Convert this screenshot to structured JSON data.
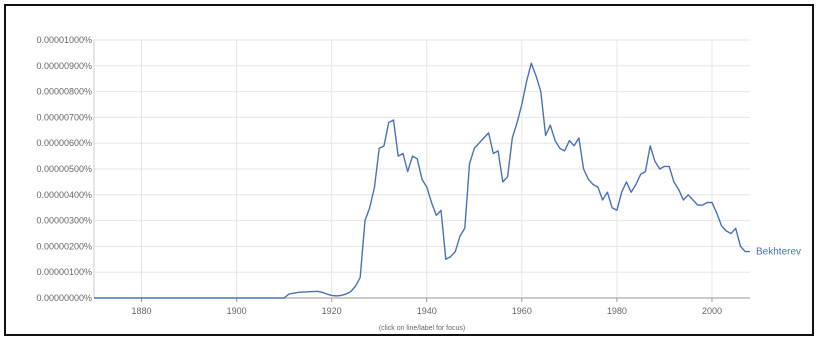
{
  "chart_data": {
    "type": "line",
    "title": "",
    "xlabel": "",
    "ylabel": "",
    "xlim": [
      1870,
      2008
    ],
    "ylim": [
      0,
      1e-05
    ],
    "x_ticks": [
      1880,
      1900,
      1920,
      1940,
      1960,
      1980,
      2000
    ],
    "y_ticks": [
      {
        "value": 1e-05,
        "label": "0.00001000%"
      },
      {
        "value": 9e-06,
        "label": "0.00000900%"
      },
      {
        "value": 8e-06,
        "label": "0.00000800%"
      },
      {
        "value": 7e-06,
        "label": "0.00000700%"
      },
      {
        "value": 6e-06,
        "label": "0.00000600%"
      },
      {
        "value": 5e-06,
        "label": "0.00000500%"
      },
      {
        "value": 4e-06,
        "label": "0.00000400%"
      },
      {
        "value": 3e-06,
        "label": "0.00000300%"
      },
      {
        "value": 2e-06,
        "label": "0.00000200%"
      },
      {
        "value": 1e-06,
        "label": "0.00000100%"
      },
      {
        "value": 0,
        "label": "0.00000000%"
      }
    ],
    "grid": true,
    "series": [
      {
        "name": "Bekhterev",
        "color": "#4a72b5",
        "points": [
          [
            1870,
            0
          ],
          [
            1910,
            0
          ],
          [
            1911,
            1.5e-07
          ],
          [
            1913,
            2.2e-07
          ],
          [
            1915,
            2.4e-07
          ],
          [
            1917,
            2.6e-07
          ],
          [
            1918,
            2.2e-07
          ],
          [
            1919,
            1.5e-07
          ],
          [
            1920,
            1e-07
          ],
          [
            1921,
            8e-08
          ],
          [
            1922,
            1e-07
          ],
          [
            1923,
            1.5e-07
          ],
          [
            1924,
            2.5e-07
          ],
          [
            1925,
            4.5e-07
          ],
          [
            1926,
            8e-07
          ],
          [
            1927,
            3e-06
          ],
          [
            1928,
            3.5e-06
          ],
          [
            1929,
            4.3e-06
          ],
          [
            1930,
            5.8e-06
          ],
          [
            1931,
            5.9e-06
          ],
          [
            1932,
            6.8e-06
          ],
          [
            1933,
            6.9e-06
          ],
          [
            1934,
            5.5e-06
          ],
          [
            1935,
            5.6e-06
          ],
          [
            1936,
            4.9e-06
          ],
          [
            1937,
            5.5e-06
          ],
          [
            1938,
            5.4e-06
          ],
          [
            1939,
            4.6e-06
          ],
          [
            1940,
            4.3e-06
          ],
          [
            1941,
            3.7e-06
          ],
          [
            1942,
            3.2e-06
          ],
          [
            1943,
            3.4e-06
          ],
          [
            1944,
            1.5e-06
          ],
          [
            1945,
            1.6e-06
          ],
          [
            1946,
            1.8e-06
          ],
          [
            1947,
            2.4e-06
          ],
          [
            1948,
            2.7e-06
          ],
          [
            1949,
            5.2e-06
          ],
          [
            1950,
            5.8e-06
          ],
          [
            1951,
            6e-06
          ],
          [
            1952,
            6.2e-06
          ],
          [
            1953,
            6.4e-06
          ],
          [
            1954,
            5.6e-06
          ],
          [
            1955,
            5.7e-06
          ],
          [
            1956,
            4.5e-06
          ],
          [
            1957,
            4.7e-06
          ],
          [
            1958,
            6.2e-06
          ],
          [
            1959,
            6.8e-06
          ],
          [
            1960,
            7.5e-06
          ],
          [
            1961,
            8.4e-06
          ],
          [
            1962,
            9.1e-06
          ],
          [
            1963,
            8.6e-06
          ],
          [
            1964,
            8e-06
          ],
          [
            1965,
            6.3e-06
          ],
          [
            1966,
            6.7e-06
          ],
          [
            1967,
            6.1e-06
          ],
          [
            1968,
            5.8e-06
          ],
          [
            1969,
            5.7e-06
          ],
          [
            1970,
            6.1e-06
          ],
          [
            1971,
            5.9e-06
          ],
          [
            1972,
            6.2e-06
          ],
          [
            1973,
            5e-06
          ],
          [
            1974,
            4.6e-06
          ],
          [
            1975,
            4.4e-06
          ],
          [
            1976,
            4.3e-06
          ],
          [
            1977,
            3.8e-06
          ],
          [
            1978,
            4.1e-06
          ],
          [
            1979,
            3.5e-06
          ],
          [
            1980,
            3.4e-06
          ],
          [
            1981,
            4.1e-06
          ],
          [
            1982,
            4.5e-06
          ],
          [
            1983,
            4.1e-06
          ],
          [
            1984,
            4.4e-06
          ],
          [
            1985,
            4.8e-06
          ],
          [
            1986,
            4.9e-06
          ],
          [
            1987,
            5.9e-06
          ],
          [
            1988,
            5.3e-06
          ],
          [
            1989,
            5e-06
          ],
          [
            1990,
            5.1e-06
          ],
          [
            1991,
            5.1e-06
          ],
          [
            1992,
            4.5e-06
          ],
          [
            1993,
            4.2e-06
          ],
          [
            1994,
            3.8e-06
          ],
          [
            1995,
            4e-06
          ],
          [
            1996,
            3.8e-06
          ],
          [
            1997,
            3.6e-06
          ],
          [
            1998,
            3.6e-06
          ],
          [
            1999,
            3.7e-06
          ],
          [
            2000,
            3.7e-06
          ],
          [
            2001,
            3.3e-06
          ],
          [
            2002,
            2.8e-06
          ],
          [
            2003,
            2.6e-06
          ],
          [
            2004,
            2.5e-06
          ],
          [
            2005,
            2.7e-06
          ],
          [
            2006,
            2e-06
          ],
          [
            2007,
            1.8e-06
          ],
          [
            2008,
            1.8e-06
          ]
        ]
      }
    ],
    "annotation": "(click on line/label for focus)"
  }
}
